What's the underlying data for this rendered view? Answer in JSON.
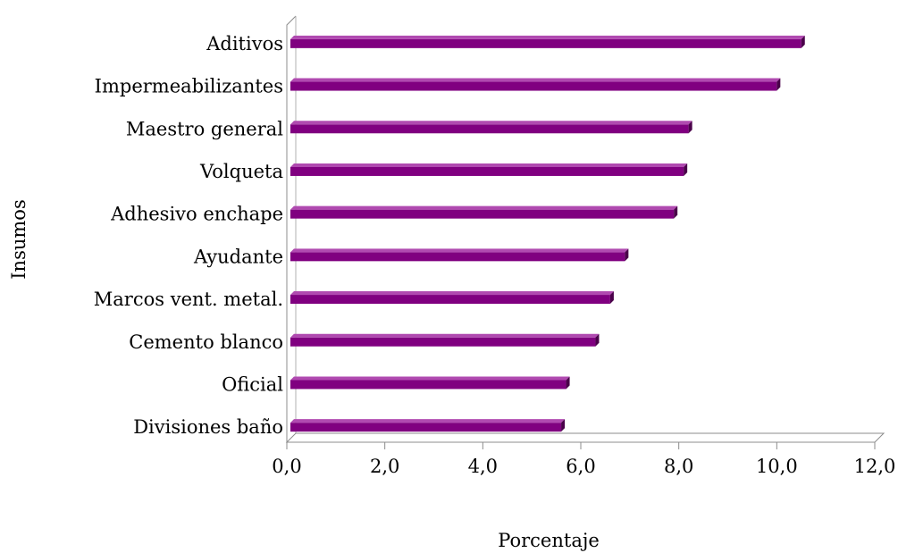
{
  "chart_data": {
    "type": "bar",
    "orientation": "horizontal",
    "categories": [
      "Aditivos",
      "Impermeabilizantes",
      "Maestro general",
      "Volqueta",
      "Adhesivo enchape",
      "Ayudante",
      "Marcos vent. metal.",
      "Cemento blanco",
      "Oficial",
      "Divisiones baño"
    ],
    "values": [
      10.5,
      10.0,
      8.2,
      8.1,
      7.9,
      6.9,
      6.6,
      6.3,
      5.7,
      5.6
    ],
    "title": "",
    "xlabel": "Porcentaje",
    "ylabel": "Insumos",
    "xlim": [
      0,
      12
    ],
    "x_ticks": [
      "0,0",
      "2,0",
      "4,0",
      "6,0",
      "8,0",
      "10,0",
      "12,0"
    ],
    "grid": false,
    "legend": "none",
    "bar_color": "#800080",
    "bar_top_color": "#b04ab0",
    "bar_side_color": "#4a004a"
  }
}
